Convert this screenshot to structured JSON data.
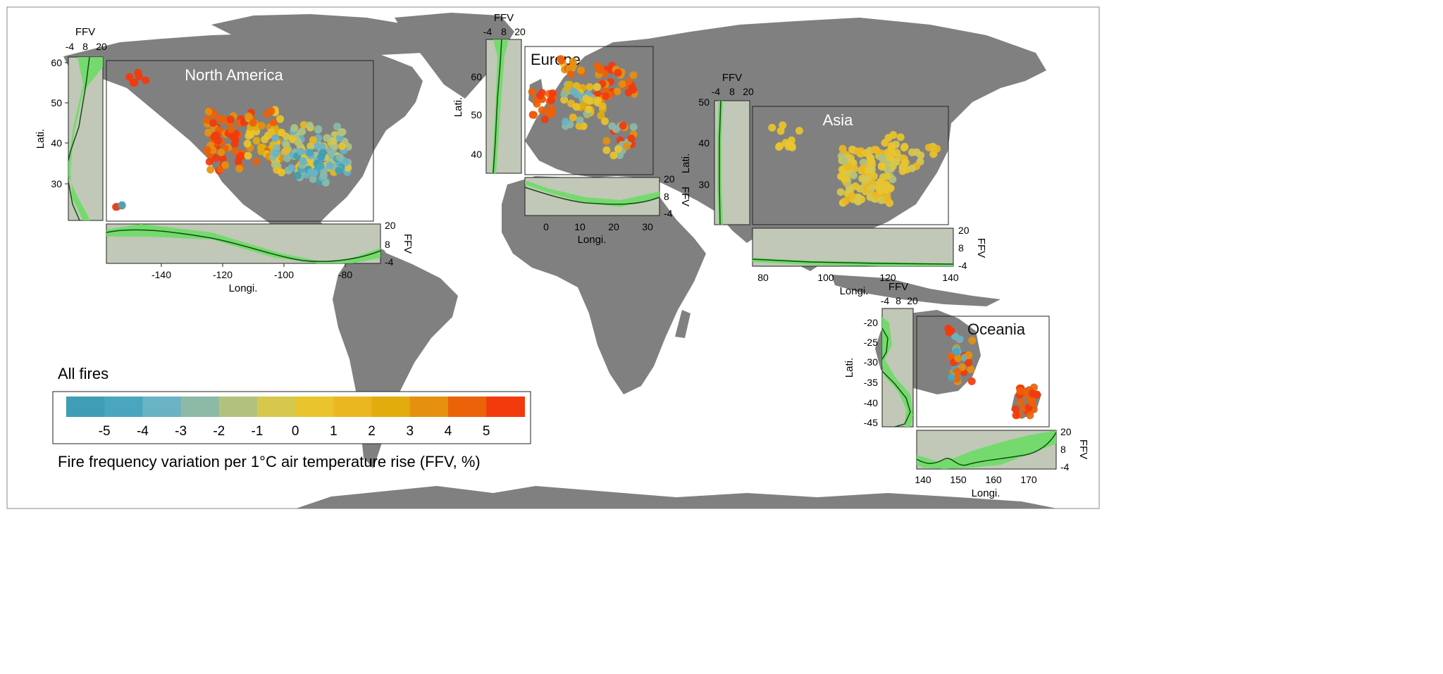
{
  "legend": {
    "heading": "All fires",
    "caption": "Fire frequency variation per 1°C air temperature rise (FFV, %)",
    "tick_labels": [
      "-5",
      "-4",
      "-3",
      "-2",
      "-1",
      "0",
      "1",
      "2",
      "3",
      "4",
      "5"
    ],
    "color_scale": [
      "#3f9db5",
      "#4aa6bf",
      "#6ab3c4",
      "#8cbaa6",
      "#b2c27e",
      "#d6c84d",
      "#e9c42d",
      "#eab722",
      "#e2ac0e",
      "#e5900f",
      "#eb6209",
      "#f23a0c"
    ]
  },
  "colors": {
    "land": "#808080",
    "panel_fill": "#c1c8b7",
    "band_fill": "#6ddc66",
    "line": "#124d12"
  },
  "panels": {
    "north_america": {
      "title": "North America",
      "x_ticks": [
        "-140",
        "-120",
        "-100",
        "-80"
      ],
      "x_label": "Longi.",
      "y_ticks": [
        "60",
        "50",
        "40",
        "30"
      ],
      "y_label": "Lati.",
      "ffv_ticks": [
        "-4",
        "8",
        "20"
      ],
      "ffv_label": "FFV"
    },
    "europe": {
      "title": "Europe",
      "x_ticks": [
        "0",
        "10",
        "20",
        "30"
      ],
      "x_label": "Longi.",
      "y_ticks": [
        "60",
        "50",
        "40"
      ],
      "y_label": "Lati.",
      "ffv_ticks": [
        "-4",
        "8",
        "20"
      ],
      "ffv_label": "FFV"
    },
    "asia": {
      "title": "Asia",
      "x_ticks": [
        "80",
        "100",
        "120",
        "140"
      ],
      "x_label": "Longi.",
      "y_ticks": [
        "50",
        "40",
        "30"
      ],
      "y_label": "Lati.",
      "ffv_ticks": [
        "-4",
        "8",
        "20"
      ],
      "ffv_label": "FFV"
    },
    "oceania": {
      "title": "Oceania",
      "x_ticks": [
        "140",
        "150",
        "160",
        "170"
      ],
      "x_label": "Longi.",
      "y_ticks": [
        "-20",
        "-25",
        "-30",
        "-35",
        "-40",
        "-45"
      ],
      "y_label": "Lati.",
      "ffv_ticks": [
        "-4",
        "8",
        "20"
      ],
      "ffv_label": "FFV"
    }
  }
}
